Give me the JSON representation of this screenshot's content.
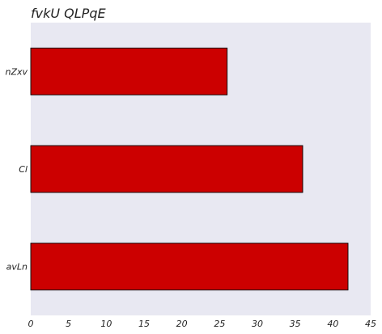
{
  "chart_data": {
    "type": "bar",
    "orientation": "horizontal",
    "title": "fvkU QLPqE",
    "categories": [
      "nZxv",
      "Cl",
      "avLn"
    ],
    "values": [
      26,
      36,
      42
    ],
    "xlim": [
      0,
      45
    ],
    "xticks": [
      0,
      5,
      10,
      15,
      20,
      25,
      30,
      35,
      40,
      45
    ],
    "xlabel": "",
    "ylabel": "",
    "grid": false,
    "colors": {
      "bar": "#cc0000",
      "bar_edge": "#000000",
      "plot_bg": "#e8e8f2"
    }
  }
}
